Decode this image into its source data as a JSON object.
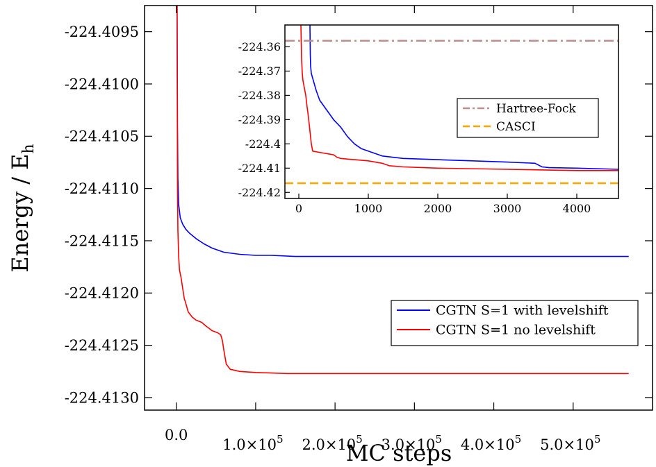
{
  "chart_data": [
    {
      "type": "line",
      "xlabel": "MC steps",
      "ylabel_main": "Energy / E",
      "ylabel_sub": "h",
      "xlim": [
        -40000,
        600000
      ],
      "ylim": [
        -224.41312,
        -224.40925
      ],
      "y_ticks": [
        -224.4095,
        -224.41,
        -224.4105,
        -224.411,
        -224.4115,
        -224.412,
        -224.4125,
        -224.413
      ],
      "y_tick_labels": [
        "-224.4095",
        "-224.4100",
        "-224.4105",
        "-224.4110",
        "-224.4115",
        "-224.4120",
        "-224.4125",
        "-224.4130"
      ],
      "x_ticks": [
        0,
        100000,
        200000,
        300000,
        400000,
        500000
      ],
      "x_tick_labels": [
        {
          "mantissa": "0.0",
          "exp": ""
        },
        {
          "mantissa": "1.0×10",
          "exp": "5"
        },
        {
          "mantissa": "2.0×10",
          "exp": "5"
        },
        {
          "mantissa": "3.0×10",
          "exp": "5"
        },
        {
          "mantissa": "4.0×10",
          "exp": "5"
        },
        {
          "mantissa": "5.0×10",
          "exp": "5"
        }
      ],
      "legend_position": "lower-right",
      "series": [
        {
          "name": "CGTN S=1 with levelshift",
          "color": "#0000ff",
          "x": [
            1000,
            1500,
            2000,
            3000,
            5000,
            8000,
            12000,
            17000,
            25000,
            35000,
            45000,
            60000,
            80000,
            100000,
            120000,
            150000,
            200000,
            300000,
            400000,
            500000,
            570000
          ],
          "y": [
            -224.4092,
            -224.4104,
            -224.4109,
            -224.41115,
            -224.41128,
            -224.41134,
            -224.41139,
            -224.41143,
            -224.41148,
            -224.41153,
            -224.41157,
            -224.41161,
            -224.41163,
            -224.41164,
            -224.41164,
            -224.41165,
            -224.41165,
            -224.41165,
            -224.41165,
            -224.41165,
            -224.41165
          ]
        },
        {
          "name": "CGTN S=1 no levelshift",
          "color": "#ff0000",
          "x": [
            1000,
            1500,
            2000,
            3000,
            4000,
            6000,
            8000,
            10000,
            12000,
            15000,
            20000,
            25000,
            32000,
            38000,
            40000,
            45000,
            52000,
            56000,
            58000,
            60000,
            63000,
            68000,
            80000,
            100000,
            140000,
            200000,
            300000,
            400000,
            500000,
            570000
          ],
          "y": [
            -224.4092,
            -224.41095,
            -224.4114,
            -224.41165,
            -224.41178,
            -224.41185,
            -224.41195,
            -224.41205,
            -224.4121,
            -224.41218,
            -224.41223,
            -224.41226,
            -224.41228,
            -224.41232,
            -224.41233,
            -224.41236,
            -224.41238,
            -224.4124,
            -224.41245,
            -224.41255,
            -224.41268,
            -224.41273,
            -224.41275,
            -224.41276,
            -224.41277,
            -224.41277,
            -224.41277,
            -224.41277,
            -224.41277,
            -224.41277
          ]
        }
      ]
    },
    {
      "type": "line",
      "xlim": [
        -200,
        4600
      ],
      "ylim": [
        -224.4225,
        -224.351
      ],
      "y_ticks": [
        -224.36,
        -224.37,
        -224.38,
        -224.39,
        -224.4,
        -224.41,
        -224.42
      ],
      "y_tick_labels": [
        "-224.36",
        "-224.37",
        "-224.38",
        "-224.39",
        "-224.4",
        "-224.41",
        "-224.42"
      ],
      "x_ticks": [
        0,
        1000,
        2000,
        3000,
        4000
      ],
      "x_tick_labels": [
        "0",
        "1000",
        "2000",
        "3000",
        "4000"
      ],
      "legend_position": "center-right",
      "series": [
        {
          "name": "CGTN S=1 with levelshift",
          "color": "#0000ff",
          "x": [
            160,
            165,
            170,
            180,
            200,
            250,
            300,
            400,
            500,
            600,
            700,
            800,
            900,
            1000,
            1100,
            1200,
            1500,
            2000,
            2500,
            3000,
            3400,
            3500,
            3600,
            4000,
            4600
          ],
          "y": [
            -224.351,
            -224.363,
            -224.368,
            -224.371,
            -224.373,
            -224.378,
            -224.382,
            -224.386,
            -224.39,
            -224.393,
            -224.397,
            -224.4,
            -224.402,
            -224.403,
            -224.404,
            -224.405,
            -224.406,
            -224.4065,
            -224.407,
            -224.4075,
            -224.408,
            -224.4095,
            -224.4098,
            -224.41,
            -224.4105
          ]
        },
        {
          "name": "CGTN S=1 no levelshift",
          "color": "#ff0000",
          "x": [
            30,
            40,
            50,
            60,
            80,
            100,
            120,
            130,
            150,
            180,
            200,
            300,
            500,
            550,
            600,
            800,
            1000,
            1200,
            1300,
            1500,
            2000,
            3000,
            4000,
            4600
          ],
          "y": [
            -224.351,
            -224.365,
            -224.371,
            -224.374,
            -224.377,
            -224.38,
            -224.385,
            -224.387,
            -224.392,
            -224.4,
            -224.403,
            -224.4035,
            -224.4045,
            -224.4055,
            -224.406,
            -224.4065,
            -224.407,
            -224.408,
            -224.409,
            -224.4095,
            -224.41,
            -224.4105,
            -224.411,
            -224.411
          ]
        },
        {
          "name": "Hartree-Fock",
          "color": "#bc8f8f",
          "dash": "dashdot",
          "x": [
            -200,
            4600
          ],
          "y": [
            -224.3575,
            -224.3575
          ]
        },
        {
          "name": "CASCI",
          "color": "#ffa500",
          "dash": "dashed",
          "x": [
            -200,
            4600
          ],
          "y": [
            -224.4162,
            -224.4162
          ]
        }
      ]
    }
  ]
}
